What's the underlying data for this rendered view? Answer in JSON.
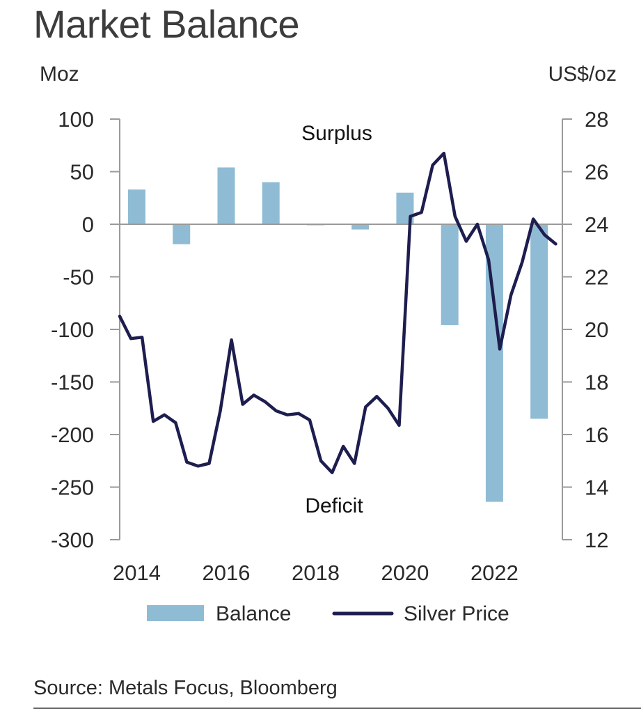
{
  "title": "Market Balance",
  "source": "Source: Metals Focus, Bloomberg",
  "colors": {
    "balance": "#8fbcd4",
    "silver_price": "#1e1d4f",
    "axis": "#9a9a9a",
    "zero_line": "#9a9a9a"
  },
  "chart_data": {
    "type": "bar",
    "title": "Market Balance",
    "left_axis": {
      "label": "Moz",
      "ylim": [
        -300,
        100
      ],
      "ticks": [
        100,
        50,
        0,
        -50,
        -100,
        -150,
        -200,
        -250,
        -300
      ]
    },
    "right_axis": {
      "label": "US$/oz",
      "ylim": [
        12,
        28
      ],
      "ticks": [
        28,
        26,
        24,
        22,
        20,
        18,
        16,
        14,
        12
      ]
    },
    "x_axis": {
      "xlim": [
        2013.65,
        2023.55
      ],
      "ticks": [
        "2014",
        "2016",
        "2018",
        "2020",
        "2022"
      ]
    },
    "annotations": {
      "surplus": "Surplus",
      "deficit": "Deficit"
    },
    "legend": {
      "position": "bottom",
      "entries": [
        "Balance",
        "Silver Price"
      ]
    },
    "grid": false,
    "series": [
      {
        "name": "Balance",
        "type": "bar",
        "axis": "left",
        "x": [
          2014,
          2015,
          2016,
          2017,
          2018,
          2019,
          2020,
          2021,
          2022,
          2023
        ],
        "values": [
          33,
          -19,
          54,
          40,
          -1,
          -5,
          30,
          -96,
          -264,
          -185
        ]
      },
      {
        "name": "Silver Price",
        "type": "line",
        "axis": "left_dummy",
        "points": [
          [
            2013.65,
            20.5
          ],
          [
            2013.9,
            19.65
          ],
          [
            2014.15,
            19.7
          ],
          [
            2014.4,
            16.5
          ],
          [
            2014.65,
            16.75
          ],
          [
            2014.9,
            16.45
          ],
          [
            2015.15,
            14.95
          ],
          [
            2015.4,
            14.8
          ],
          [
            2015.65,
            14.9
          ],
          [
            2015.9,
            16.9
          ],
          [
            2016.15,
            19.6
          ],
          [
            2016.4,
            17.15
          ],
          [
            2016.65,
            17.5
          ],
          [
            2016.9,
            17.25
          ],
          [
            2017.15,
            16.9
          ],
          [
            2017.4,
            16.75
          ],
          [
            2017.65,
            16.8
          ],
          [
            2017.9,
            16.55
          ],
          [
            2018.15,
            15.0
          ],
          [
            2018.4,
            14.55
          ],
          [
            2018.65,
            15.55
          ],
          [
            2018.9,
            14.9
          ],
          [
            2019.15,
            17.05
          ],
          [
            2019.4,
            17.45
          ],
          [
            2019.65,
            17.0
          ],
          [
            2019.9,
            16.35
          ],
          [
            2020.15,
            24.3
          ],
          [
            2020.4,
            24.45
          ],
          [
            2020.65,
            26.25
          ],
          [
            2020.9,
            26.7
          ],
          [
            2021.15,
            24.3
          ],
          [
            2021.4,
            23.35
          ],
          [
            2021.65,
            24.0
          ],
          [
            2021.9,
            22.65
          ],
          [
            2022.15,
            19.25
          ],
          [
            2022.4,
            21.3
          ],
          [
            2022.65,
            22.55
          ],
          [
            2022.9,
            24.2
          ],
          [
            2023.15,
            23.6
          ],
          [
            2023.4,
            23.25
          ]
        ]
      }
    ]
  }
}
